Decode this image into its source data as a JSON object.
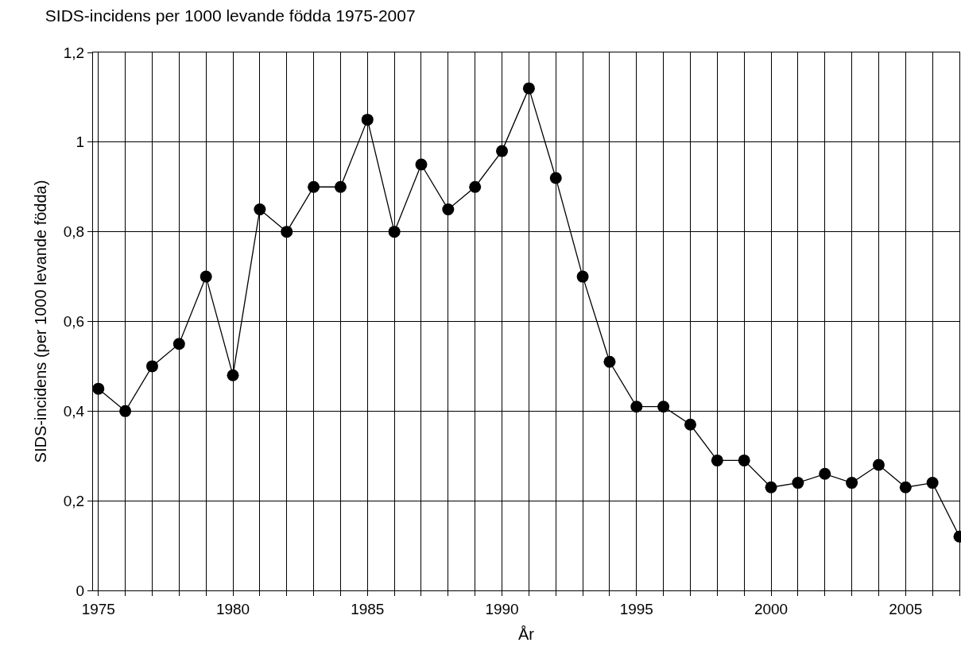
{
  "chart_data": {
    "type": "line",
    "title": "SIDS-incidens per 1000 levande födda 1975-2007",
    "xlabel": "År",
    "ylabel": "SIDS-incidens (per 1000 levande födda)",
    "x": [
      1975,
      1976,
      1977,
      1978,
      1979,
      1980,
      1981,
      1982,
      1983,
      1984,
      1985,
      1986,
      1987,
      1988,
      1989,
      1990,
      1991,
      1992,
      1993,
      1994,
      1995,
      1996,
      1997,
      1998,
      1999,
      2000,
      2001,
      2002,
      2003,
      2004,
      2005,
      2006,
      2007
    ],
    "series": [
      {
        "color": "#000000",
        "values": [
          0.45,
          0.4,
          0.5,
          0.55,
          0.7,
          0.48,
          0.85,
          0.8,
          0.9,
          0.9,
          1.05,
          0.8,
          0.95,
          0.85,
          0.9,
          0.98,
          1.12,
          0.92,
          0.7,
          0.51,
          0.41,
          0.41,
          0.37,
          0.29,
          0.29,
          0.23,
          0.24,
          0.26,
          0.24,
          0.28,
          0.23,
          0.24,
          0.12
        ]
      }
    ],
    "xlim": [
      1974.8,
      2007
    ],
    "xticks": [
      1975,
      {
        "value": 1976,
        "label": null
      },
      {
        "value": 1977,
        "label": null
      },
      {
        "value": 1978,
        "label": null
      },
      {
        "value": 1979,
        "label": null
      },
      1980,
      {
        "value": 1981,
        "label": null
      },
      {
        "value": 1982,
        "label": null
      },
      {
        "value": 1983,
        "label": null
      },
      {
        "value": 1984,
        "label": null
      },
      1985,
      {
        "value": 1986,
        "label": null
      },
      {
        "value": 1987,
        "label": null
      },
      {
        "value": 1988,
        "label": null
      },
      {
        "value": 1989,
        "label": null
      },
      1990,
      {
        "value": 1991,
        "label": null
      },
      {
        "value": 1992,
        "label": null
      },
      {
        "value": 1993,
        "label": null
      },
      {
        "value": 1994,
        "label": null
      },
      1995,
      {
        "value": 1996,
        "label": null
      },
      {
        "value": 1997,
        "label": null
      },
      {
        "value": 1998,
        "label": null
      },
      {
        "value": 1999,
        "label": null
      },
      2000,
      {
        "value": 2001,
        "label": null
      },
      {
        "value": 2002,
        "label": null
      },
      {
        "value": 2003,
        "label": null
      },
      {
        "value": 2004,
        "label": null
      },
      2005,
      {
        "value": 2006,
        "label": null
      },
      {
        "value": 2007,
        "label": null
      }
    ],
    "ylim": [
      0,
      1.2
    ],
    "yticks": [
      0,
      {
        "value": 0.2,
        "label": "0,2"
      },
      {
        "value": 0.4,
        "label": "0,4"
      },
      {
        "value": 0.6,
        "label": "0,6"
      },
      {
        "value": 0.8,
        "label": "0,8"
      },
      1,
      {
        "value": 1.2,
        "label": "1,2"
      }
    ],
    "grid": true,
    "marker": "circle",
    "line_style": "solid",
    "legend": false
  }
}
